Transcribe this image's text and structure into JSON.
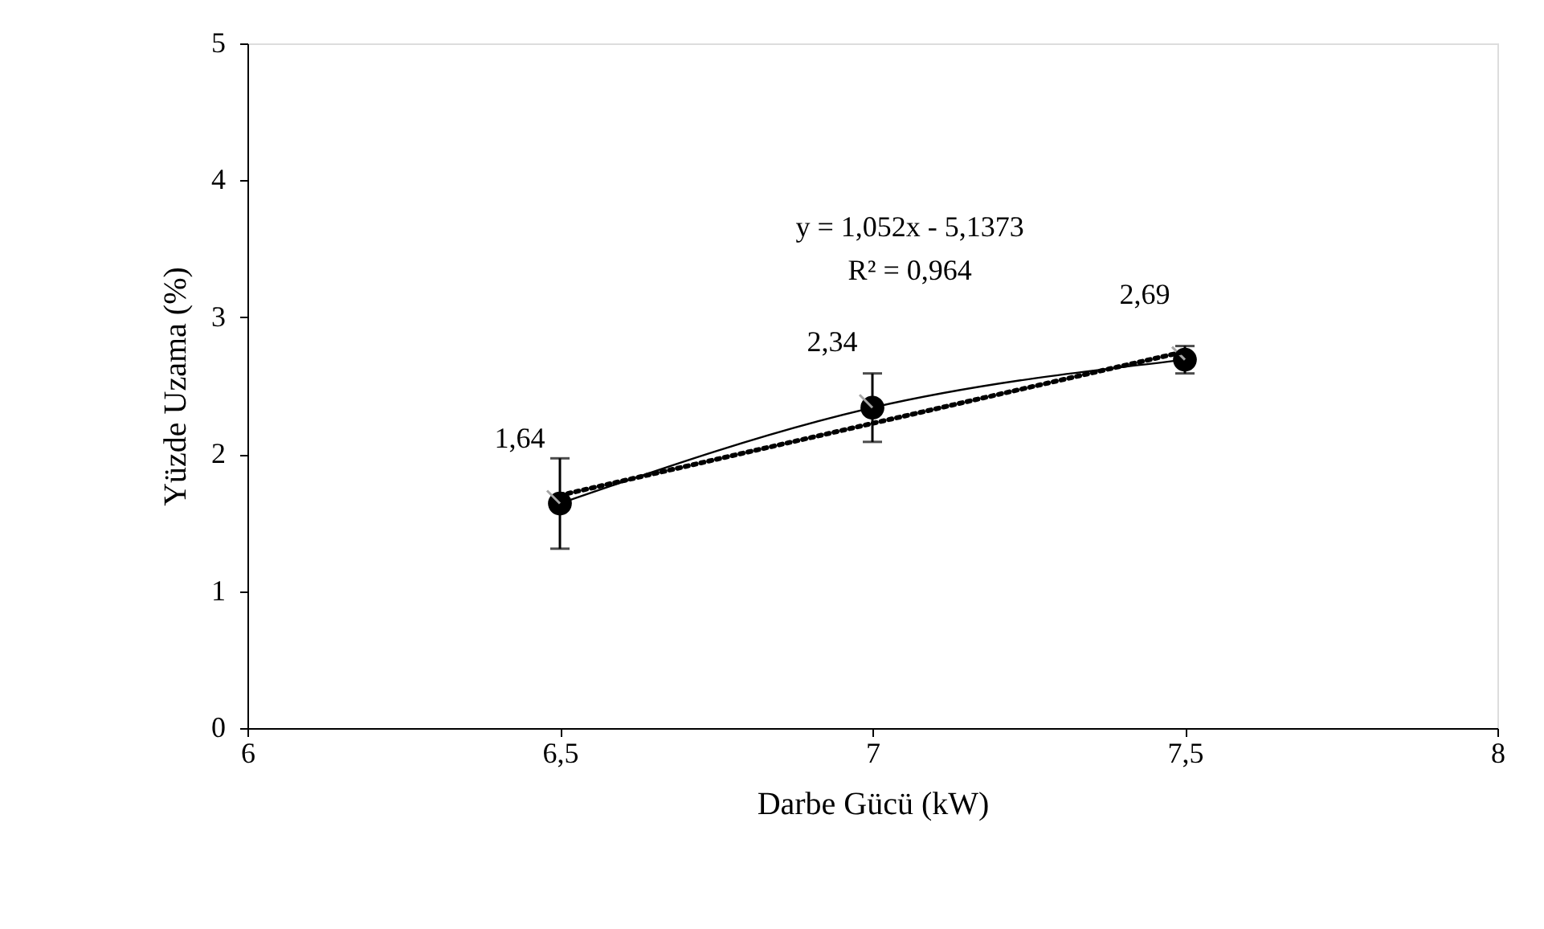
{
  "chart_data": {
    "type": "line",
    "xlabel": "Darbe Gücü (kW)",
    "ylabel": "Yüzde Uzama (%)",
    "x": [
      6.5,
      7,
      7.5
    ],
    "series": [
      {
        "color": "#000000",
        "values": [
          1.64,
          2.34,
          2.69
        ],
        "errors": [
          0.33,
          0.25,
          0.1
        ],
        "value_labels": [
          "1,64",
          "2,34",
          "2,69"
        ],
        "marker": "circle",
        "line_style": "solid"
      },
      {
        "type": "line",
        "color": "#000000",
        "x": [
          6.5,
          7.5
        ],
        "values": [
          1.7,
          2.75
        ],
        "line_style": "dotted"
      }
    ],
    "annotations": [
      "y = 1,052x - 5,1373",
      "R² = 0,964"
    ],
    "xlim": [
      6,
      8
    ],
    "xticks": [
      6,
      {
        "value": 6.5,
        "label": "6,5"
      },
      7,
      {
        "value": 7.5,
        "label": "7,5"
      },
      8
    ],
    "ylim": [
      0,
      5
    ],
    "yticks": [
      0,
      1,
      2,
      3,
      4,
      5
    ],
    "grid": false
  }
}
